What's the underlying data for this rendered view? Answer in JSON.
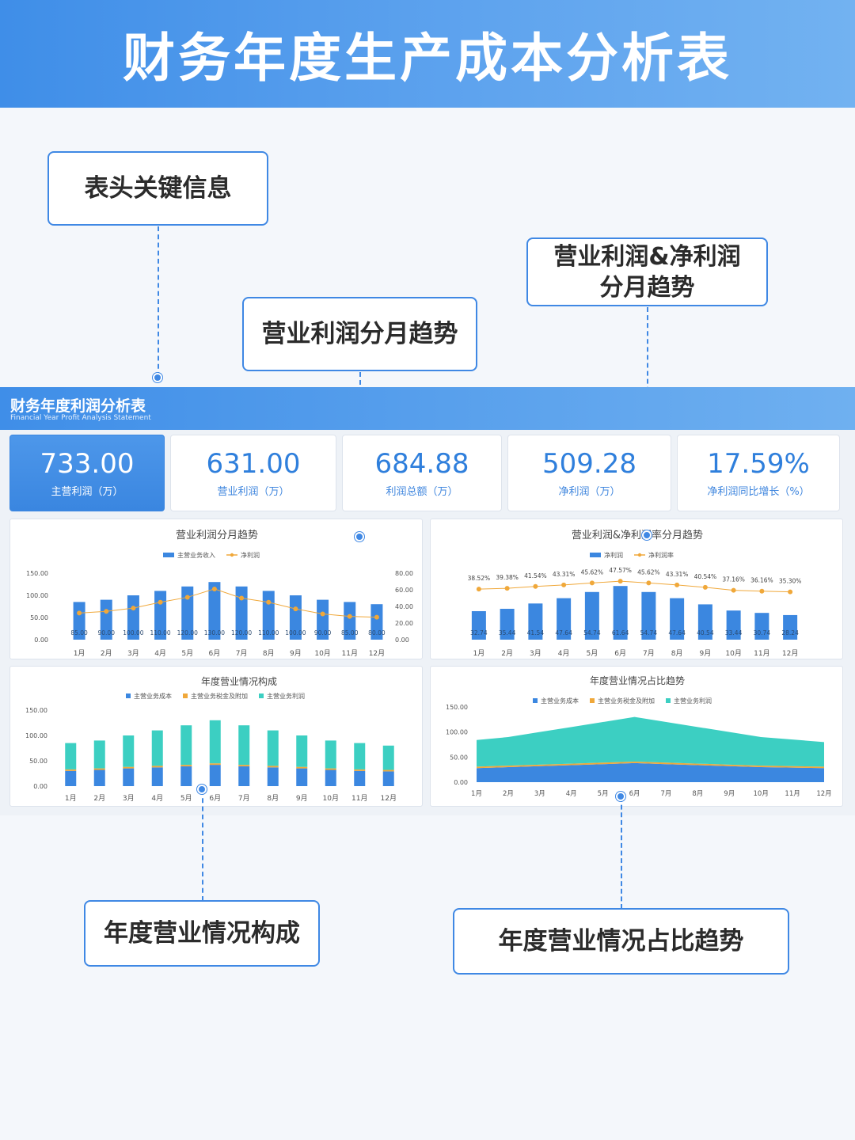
{
  "banner": {
    "title": "财务年度生产成本分析表"
  },
  "callouts": {
    "header_info": "表头关键信息",
    "profit_trend": "营业利润分月趋势",
    "profit_net_trend": "营业利润&净利润\n分月趋势",
    "composition": "年度营业情况构成",
    "share_trend": "年度营业情况占比趋势"
  },
  "panel": {
    "title": "财务年度利润分析表",
    "subtitle": "Financial Year Profit Analysis Statement"
  },
  "kpis": [
    {
      "value": "733.00",
      "label": "主营利润（万）"
    },
    {
      "value": "631.00",
      "label": "营业利润（万）"
    },
    {
      "value": "684.88",
      "label": "利润总额（万）"
    },
    {
      "value": "509.28",
      "label": "净利润（万）"
    },
    {
      "value": "17.59%",
      "label": "净利润同比增长（%）"
    }
  ],
  "colors": {
    "blue": "#3b87e0",
    "orange": "#f0a83a",
    "teal": "#3ccfc2",
    "brand": "#3f88e4"
  },
  "chart_data": [
    {
      "type": "bar",
      "title": "营业利润分月趋势",
      "categories": [
        "1月",
        "2月",
        "3月",
        "4月",
        "5月",
        "6月",
        "7月",
        "8月",
        "9月",
        "10月",
        "11月",
        "12月"
      ],
      "series": [
        {
          "name": "主营业务收入",
          "type": "bar",
          "axis": "left",
          "values": [
            85,
            90,
            100,
            110,
            120,
            130,
            120,
            110,
            100,
            90,
            85,
            80
          ],
          "labels": [
            "85.00",
            "90.00",
            "100.00",
            "110.00",
            "120.00",
            "130.00",
            "120.00",
            "110.00",
            "100.00",
            "90.00",
            "85.00",
            "80.00"
          ]
        },
        {
          "name": "净利润",
          "type": "line",
          "axis": "right",
          "values": [
            32,
            34,
            38,
            45,
            51,
            61,
            50,
            45,
            37,
            31,
            28,
            27
          ]
        }
      ],
      "y_left": {
        "ticks": [
          "150.00",
          "100.00",
          "50.00",
          "0.00"
        ],
        "range": [
          0,
          150
        ]
      },
      "y_right": {
        "ticks": [
          "80.00",
          "60.00",
          "40.00",
          "20.00",
          "0.00"
        ],
        "range": [
          0,
          80
        ]
      }
    },
    {
      "type": "bar",
      "title": "营业利润&净利润率分月趋势",
      "categories": [
        "1月",
        "2月",
        "3月",
        "4月",
        "5月",
        "6月",
        "7月",
        "8月",
        "9月",
        "10月",
        "11月",
        "12月"
      ],
      "series": [
        {
          "name": "净利润",
          "type": "bar",
          "values": [
            32.74,
            35.44,
            41.54,
            47.64,
            54.74,
            61.64,
            54.74,
            47.64,
            40.54,
            33.44,
            30.74,
            28.24
          ],
          "labels": [
            "32.74",
            "35.44",
            "41.54",
            "47.64",
            "54.74",
            "61.64",
            "54.74",
            "47.64",
            "40.54",
            "33.44",
            "30.74",
            "28.24"
          ]
        },
        {
          "name": "净利润率",
          "type": "line",
          "values": [
            38.52,
            39.38,
            41.54,
            43.31,
            45.62,
            47.57,
            45.62,
            43.31,
            40.54,
            37.16,
            36.16,
            35.3
          ],
          "labels": [
            "38.52%",
            "39.38%",
            "41.54%",
            "43.31%",
            "45.62%",
            "47.57%",
            "45.62%",
            "43.31%",
            "40.54%",
            "37.16%",
            "36.16%",
            "35.30%"
          ]
        }
      ]
    },
    {
      "type": "bar",
      "stacked": true,
      "title": "年度营业情况构成",
      "categories": [
        "1月",
        "2月",
        "3月",
        "4月",
        "5月",
        "6月",
        "7月",
        "8月",
        "9月",
        "10月",
        "11月",
        "12月"
      ],
      "series": [
        {
          "name": "主营业务成本",
          "values": [
            30,
            32,
            35,
            37,
            39,
            42,
            39,
            37,
            35,
            32,
            30,
            29
          ]
        },
        {
          "name": "主营业务税金及附加",
          "values": [
            3,
            3,
            3,
            3,
            3,
            3,
            3,
            3,
            3,
            3,
            3,
            3
          ]
        },
        {
          "name": "主营业务利润",
          "values": [
            52,
            55,
            62,
            70,
            78,
            85,
            78,
            70,
            62,
            55,
            52,
            48
          ]
        }
      ],
      "y": {
        "ticks": [
          "150.00",
          "100.00",
          "50.00",
          "0.00"
        ],
        "range": [
          0,
          150
        ]
      }
    },
    {
      "type": "area",
      "stacked": true,
      "title": "年度营业情况占比趋势",
      "categories": [
        "1月",
        "2月",
        "3月",
        "4月",
        "5月",
        "6月",
        "7月",
        "8月",
        "9月",
        "10月",
        "11月",
        "12月"
      ],
      "series": [
        {
          "name": "主营业务成本",
          "values": [
            28,
            30,
            32,
            34,
            36,
            38,
            36,
            34,
            32,
            30,
            29,
            28
          ]
        },
        {
          "name": "主营业务税金及附加",
          "values": [
            3,
            3,
            3,
            3,
            3,
            3,
            3,
            3,
            3,
            3,
            3,
            3
          ]
        },
        {
          "name": "主营业务利润",
          "values": [
            53,
            57,
            65,
            73,
            81,
            89,
            81,
            73,
            65,
            57,
            53,
            49
          ]
        }
      ],
      "y": {
        "ticks": [
          "150.00",
          "100.00",
          "50.00",
          "0.00"
        ],
        "range": [
          0,
          150
        ]
      }
    }
  ]
}
